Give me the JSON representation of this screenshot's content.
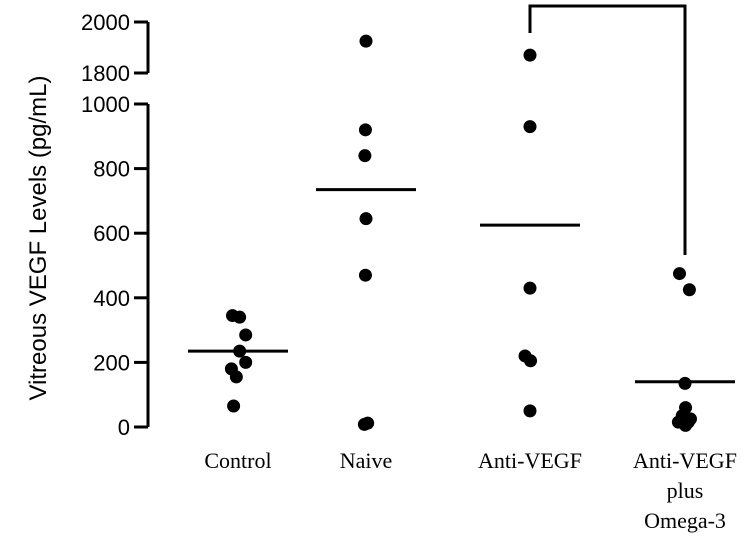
{
  "chart_data": {
    "type": "scatter",
    "ylabel": "Vitreous VEGF Levels (pg/mL)",
    "y_lower_range": [
      0,
      1000
    ],
    "y_upper_range": [
      1800,
      2000
    ],
    "y_lower_ticks": [
      "0",
      "200",
      "400",
      "600",
      "800",
      "1000"
    ],
    "y_upper_ticks": [
      "1800",
      "2000"
    ],
    "categories": [
      {
        "lines": [
          "Control"
        ]
      },
      {
        "lines": [
          "Naive"
        ]
      },
      {
        "lines": [
          "Anti-VEGF"
        ]
      },
      {
        "lines": [
          "Anti-VEGF",
          "plus",
          "Omega-3"
        ]
      }
    ],
    "groups": [
      {
        "points": [
          [
            -0.1,
            345
          ],
          [
            0.03,
            340
          ],
          [
            0.14,
            285
          ],
          [
            -0.12,
            180
          ],
          [
            0.03,
            235
          ],
          [
            0.14,
            200
          ],
          [
            -0.03,
            155
          ],
          [
            -0.08,
            65
          ]
        ],
        "mean": 235
      },
      {
        "points": [
          [
            0,
            1925
          ],
          [
            -0.01,
            920
          ],
          [
            -0.02,
            840
          ],
          [
            0,
            645
          ],
          [
            -0.01,
            470
          ],
          [
            -0.03,
            8
          ],
          [
            0.03,
            12
          ]
        ],
        "mean": 735
      },
      {
        "points": [
          [
            0,
            1870
          ],
          [
            0,
            930
          ],
          [
            0,
            430
          ],
          [
            -0.09,
            220
          ],
          [
            0.01,
            205
          ],
          [
            0,
            50
          ]
        ],
        "mean": 625
      },
      {
        "points": [
          [
            -0.1,
            475
          ],
          [
            0.08,
            425
          ],
          [
            0,
            135
          ],
          [
            -0.05,
            35
          ],
          [
            0.01,
            60
          ],
          [
            0.1,
            25
          ],
          [
            -0.12,
            15
          ],
          [
            0.06,
            15
          ],
          [
            0.01,
            5
          ]
        ],
        "mean": 140
      }
    ],
    "significance_bracket": {
      "from_category": 2,
      "to_category": 3
    }
  }
}
